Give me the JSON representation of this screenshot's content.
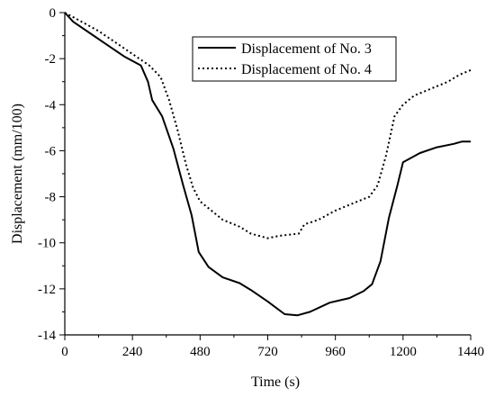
{
  "chart_data": {
    "type": "line",
    "title": "",
    "xlabel": "Time (s)",
    "ylabel": "Displacement (mm/100)",
    "xlim": [
      0,
      1440
    ],
    "ylim": [
      -14,
      0
    ],
    "x_ticks": [
      0,
      240,
      480,
      720,
      960,
      1200,
      1440
    ],
    "y_ticks": [
      0,
      -2,
      -4,
      -6,
      -8,
      -10,
      -12,
      -14
    ],
    "grid": false,
    "legend_position": "top-right",
    "series": [
      {
        "name": "Displacement of No. 3",
        "style": "solid",
        "color": "#000000",
        "points": [
          [
            0,
            0
          ],
          [
            30,
            -0.4
          ],
          [
            90,
            -0.9
          ],
          [
            150,
            -1.4
          ],
          [
            210,
            -1.9
          ],
          [
            270,
            -2.3
          ],
          [
            295,
            -3.0
          ],
          [
            310,
            -3.8
          ],
          [
            345,
            -4.5
          ],
          [
            385,
            -5.9
          ],
          [
            420,
            -7.5
          ],
          [
            450,
            -8.8
          ],
          [
            475,
            -10.4
          ],
          [
            510,
            -11.05
          ],
          [
            560,
            -11.5
          ],
          [
            620,
            -11.75
          ],
          [
            660,
            -12.05
          ],
          [
            720,
            -12.55
          ],
          [
            780,
            -13.1
          ],
          [
            825,
            -13.15
          ],
          [
            870,
            -13.0
          ],
          [
            940,
            -12.6
          ],
          [
            1010,
            -12.4
          ],
          [
            1060,
            -12.1
          ],
          [
            1090,
            -11.8
          ],
          [
            1120,
            -10.8
          ],
          [
            1150,
            -8.9
          ],
          [
            1180,
            -7.5
          ],
          [
            1200,
            -6.5
          ],
          [
            1260,
            -6.1
          ],
          [
            1320,
            -5.85
          ],
          [
            1380,
            -5.7
          ],
          [
            1410,
            -5.6
          ],
          [
            1440,
            -5.6
          ]
        ]
      },
      {
        "name": "Displacement of No. 4",
        "style": "dotted",
        "color": "#000000",
        "points": [
          [
            0,
            0
          ],
          [
            60,
            -0.4
          ],
          [
            120,
            -0.8
          ],
          [
            180,
            -1.3
          ],
          [
            240,
            -1.8
          ],
          [
            300,
            -2.3
          ],
          [
            340,
            -2.8
          ],
          [
            370,
            -3.8
          ],
          [
            400,
            -5.1
          ],
          [
            430,
            -6.6
          ],
          [
            455,
            -7.6
          ],
          [
            480,
            -8.2
          ],
          [
            520,
            -8.6
          ],
          [
            560,
            -9.0
          ],
          [
            620,
            -9.3
          ],
          [
            660,
            -9.6
          ],
          [
            720,
            -9.8
          ],
          [
            760,
            -9.7
          ],
          [
            830,
            -9.6
          ],
          [
            850,
            -9.2
          ],
          [
            900,
            -9.0
          ],
          [
            960,
            -8.6
          ],
          [
            1020,
            -8.3
          ],
          [
            1080,
            -8.0
          ],
          [
            1110,
            -7.5
          ],
          [
            1140,
            -6.2
          ],
          [
            1170,
            -4.5
          ],
          [
            1200,
            -4.0
          ],
          [
            1240,
            -3.6
          ],
          [
            1300,
            -3.3
          ],
          [
            1360,
            -3.0
          ],
          [
            1400,
            -2.7
          ],
          [
            1440,
            -2.5
          ]
        ]
      }
    ]
  }
}
